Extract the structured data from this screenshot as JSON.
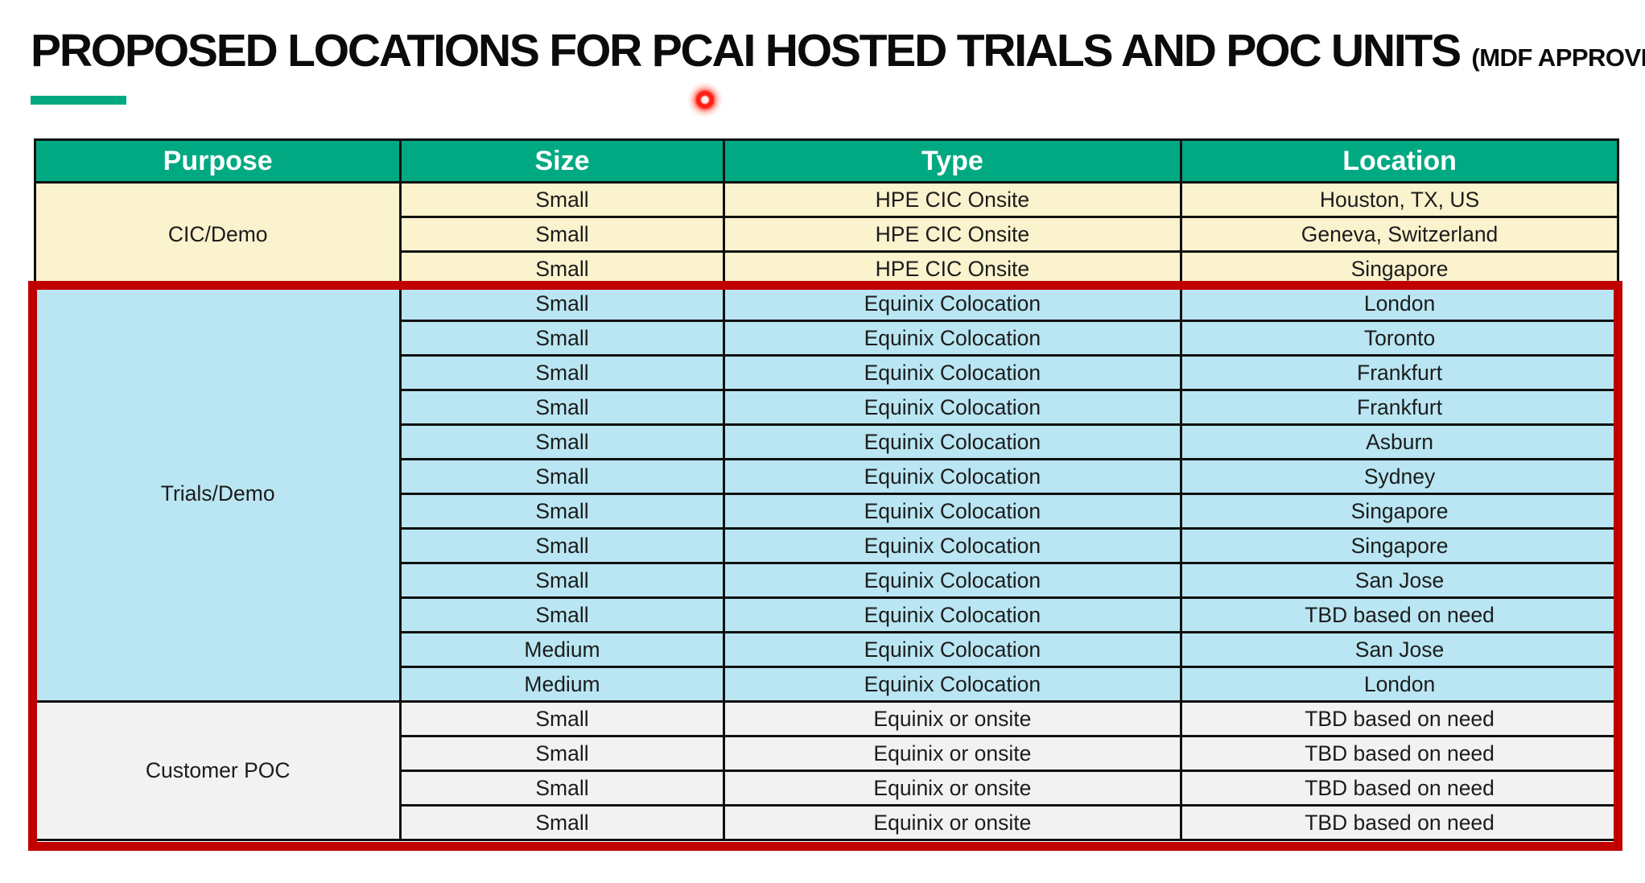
{
  "title": {
    "main": "PROPOSED LOCATIONS FOR PCAI HOSTED TRIALS AND POC UNITS",
    "suffix": "(MDF APPROVED)"
  },
  "pointer": {
    "description": "laser-pointer-dot",
    "color": "#ff1f14"
  },
  "colors": {
    "accent_green": "#01A982",
    "header_text": "#ffffff",
    "section_cic_bg": "#FBF2CE",
    "section_trials_bg": "#B9E6F2",
    "section_poc_bg": "#F2F2F2",
    "highlight_red": "#C00000",
    "grid_border": "#101010",
    "body_text": "#1c1c1c"
  },
  "table": {
    "headers": [
      "Purpose",
      "Size",
      "Type",
      "Location"
    ],
    "highlight": {
      "border_color": "#C00000",
      "covers_sections": [
        "Trials/Demo",
        "Customer POC"
      ]
    },
    "sections": [
      {
        "purpose": "CIC/Demo",
        "bg": "#FBF2CE",
        "rows": [
          [
            "Small",
            "HPE CIC Onsite",
            "Houston, TX, US"
          ],
          [
            "Small",
            "HPE CIC Onsite",
            "Geneva, Switzerland"
          ],
          [
            "Small",
            "HPE CIC Onsite",
            "Singapore"
          ]
        ]
      },
      {
        "purpose": "Trials/Demo",
        "bg": "#B9E6F2",
        "rows": [
          [
            "Small",
            "Equinix Colocation",
            "London"
          ],
          [
            "Small",
            "Equinix Colocation",
            "Toronto"
          ],
          [
            "Small",
            "Equinix Colocation",
            "Frankfurt"
          ],
          [
            "Small",
            "Equinix Colocation",
            "Frankfurt"
          ],
          [
            "Small",
            "Equinix Colocation",
            "Asburn"
          ],
          [
            "Small",
            "Equinix Colocation",
            "Sydney"
          ],
          [
            "Small",
            "Equinix Colocation",
            "Singapore"
          ],
          [
            "Small",
            "Equinix Colocation",
            "Singapore"
          ],
          [
            "Small",
            "Equinix Colocation",
            "San Jose"
          ],
          [
            "Small",
            "Equinix Colocation",
            "TBD based on need"
          ],
          [
            "Medium",
            "Equinix Colocation",
            "San Jose"
          ],
          [
            "Medium",
            "Equinix Colocation",
            "London"
          ]
        ]
      },
      {
        "purpose": "Customer POC",
        "bg": "#F2F2F2",
        "rows": [
          [
            "Small",
            "Equinix or onsite",
            "TBD based on need"
          ],
          [
            "Small",
            "Equinix or onsite",
            "TBD based on need"
          ],
          [
            "Small",
            "Equinix or onsite",
            "TBD based on need"
          ],
          [
            "Small",
            "Equinix or onsite",
            "TBD based on need"
          ]
        ]
      }
    ]
  }
}
